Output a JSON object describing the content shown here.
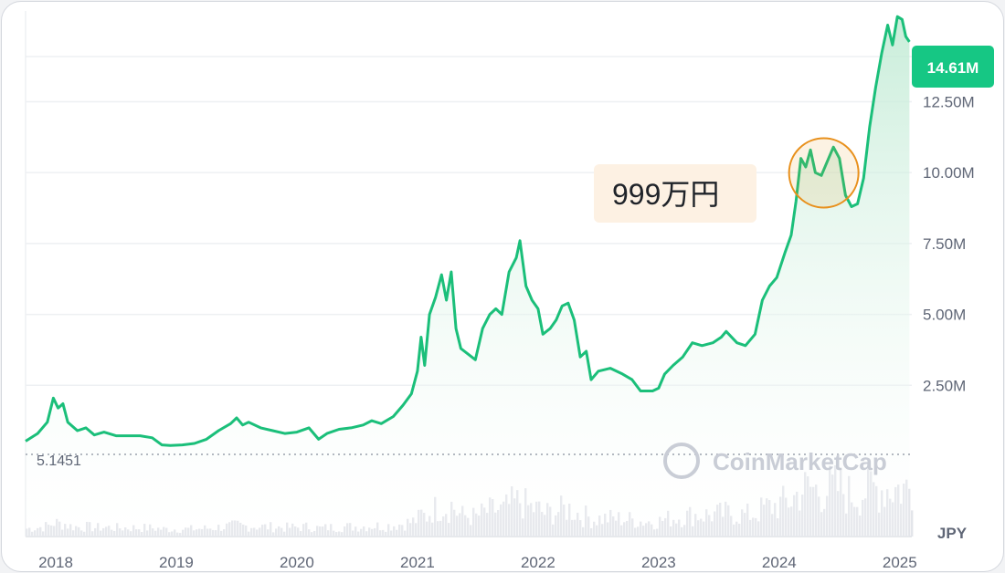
{
  "colors": {
    "line": "#1bbf7a",
    "fill_top": "#bfead3",
    "badge": "#16c784",
    "callout_bg": "#fdf1e3",
    "highlight": "#e8901c",
    "volume": "#e3e5ea",
    "grid": "#eef0f3"
  },
  "chart_data": {
    "type": "line",
    "currency": "JPY",
    "current_price_label": "14.61M",
    "base_value_label": "5.1451",
    "annotation": {
      "text": "999万円",
      "x": 2024.37,
      "y": 9990000
    },
    "watermark": "CoinMarketCap",
    "xlim": [
      2017.75,
      2025.1
    ],
    "ylim": [
      0,
      15700000
    ],
    "y_ticks": [
      {
        "value": 2500000,
        "label": "2.50M"
      },
      {
        "value": 5000000,
        "label": "5.00M"
      },
      {
        "value": 7500000,
        "label": "7.50M"
      },
      {
        "value": 10000000,
        "label": "10.00M"
      },
      {
        "value": 12500000,
        "label": "12.50M"
      }
    ],
    "x_ticks": [
      {
        "value": 2018.0,
        "label": "2018"
      },
      {
        "value": 2019.0,
        "label": "2019"
      },
      {
        "value": 2020.0,
        "label": "2020"
      },
      {
        "value": 2021.0,
        "label": "2021"
      },
      {
        "value": 2022.0,
        "label": "2022"
      },
      {
        "value": 2023.0,
        "label": "2023"
      },
      {
        "value": 2024.0,
        "label": "2024"
      },
      {
        "value": 2025.0,
        "label": "2025"
      }
    ],
    "series": [
      {
        "points": [
          [
            2017.75,
            530000
          ],
          [
            2017.85,
            800000
          ],
          [
            2017.93,
            1200000
          ],
          [
            2017.98,
            2050000
          ],
          [
            2018.02,
            1700000
          ],
          [
            2018.06,
            1850000
          ],
          [
            2018.1,
            1200000
          ],
          [
            2018.18,
            900000
          ],
          [
            2018.25,
            1000000
          ],
          [
            2018.32,
            750000
          ],
          [
            2018.4,
            850000
          ],
          [
            2018.5,
            720000
          ],
          [
            2018.6,
            720000
          ],
          [
            2018.7,
            720000
          ],
          [
            2018.8,
            650000
          ],
          [
            2018.88,
            400000
          ],
          [
            2018.95,
            380000
          ],
          [
            2019.05,
            400000
          ],
          [
            2019.15,
            450000
          ],
          [
            2019.25,
            600000
          ],
          [
            2019.35,
            900000
          ],
          [
            2019.45,
            1150000
          ],
          [
            2019.5,
            1350000
          ],
          [
            2019.55,
            1100000
          ],
          [
            2019.6,
            1200000
          ],
          [
            2019.7,
            1000000
          ],
          [
            2019.8,
            900000
          ],
          [
            2019.9,
            800000
          ],
          [
            2020.0,
            850000
          ],
          [
            2020.1,
            1000000
          ],
          [
            2020.18,
            600000
          ],
          [
            2020.25,
            800000
          ],
          [
            2020.35,
            950000
          ],
          [
            2020.45,
            1000000
          ],
          [
            2020.55,
            1100000
          ],
          [
            2020.62,
            1250000
          ],
          [
            2020.7,
            1150000
          ],
          [
            2020.8,
            1400000
          ],
          [
            2020.88,
            1800000
          ],
          [
            2020.95,
            2200000
          ],
          [
            2021.0,
            3000000
          ],
          [
            2021.03,
            4200000
          ],
          [
            2021.06,
            3200000
          ],
          [
            2021.1,
            5000000
          ],
          [
            2021.15,
            5600000
          ],
          [
            2021.2,
            6400000
          ],
          [
            2021.24,
            5500000
          ],
          [
            2021.28,
            6500000
          ],
          [
            2021.32,
            4500000
          ],
          [
            2021.36,
            3800000
          ],
          [
            2021.42,
            3600000
          ],
          [
            2021.48,
            3400000
          ],
          [
            2021.54,
            4500000
          ],
          [
            2021.6,
            5000000
          ],
          [
            2021.65,
            5200000
          ],
          [
            2021.7,
            5000000
          ],
          [
            2021.76,
            6500000
          ],
          [
            2021.82,
            7000000
          ],
          [
            2021.85,
            7600000
          ],
          [
            2021.9,
            6000000
          ],
          [
            2021.95,
            5500000
          ],
          [
            2022.0,
            5200000
          ],
          [
            2022.04,
            4300000
          ],
          [
            2022.1,
            4500000
          ],
          [
            2022.15,
            4800000
          ],
          [
            2022.2,
            5300000
          ],
          [
            2022.25,
            5400000
          ],
          [
            2022.3,
            4800000
          ],
          [
            2022.35,
            3500000
          ],
          [
            2022.4,
            3700000
          ],
          [
            2022.44,
            2700000
          ],
          [
            2022.5,
            3000000
          ],
          [
            2022.6,
            3100000
          ],
          [
            2022.7,
            2900000
          ],
          [
            2022.78,
            2700000
          ],
          [
            2022.85,
            2300000
          ],
          [
            2022.95,
            2300000
          ],
          [
            2023.0,
            2400000
          ],
          [
            2023.05,
            2900000
          ],
          [
            2023.12,
            3200000
          ],
          [
            2023.2,
            3500000
          ],
          [
            2023.28,
            4000000
          ],
          [
            2023.36,
            3900000
          ],
          [
            2023.45,
            4000000
          ],
          [
            2023.52,
            4200000
          ],
          [
            2023.56,
            4400000
          ],
          [
            2023.65,
            4000000
          ],
          [
            2023.72,
            3900000
          ],
          [
            2023.8,
            4300000
          ],
          [
            2023.86,
            5500000
          ],
          [
            2023.92,
            6000000
          ],
          [
            2023.98,
            6300000
          ],
          [
            2024.05,
            7200000
          ],
          [
            2024.1,
            7800000
          ],
          [
            2024.14,
            9000000
          ],
          [
            2024.18,
            10500000
          ],
          [
            2024.22,
            10200000
          ],
          [
            2024.26,
            10800000
          ],
          [
            2024.3,
            10000000
          ],
          [
            2024.35,
            9900000
          ],
          [
            2024.4,
            10400000
          ],
          [
            2024.45,
            10900000
          ],
          [
            2024.5,
            10500000
          ],
          [
            2024.55,
            9200000
          ],
          [
            2024.6,
            8800000
          ],
          [
            2024.65,
            8900000
          ],
          [
            2024.7,
            9800000
          ],
          [
            2024.75,
            11600000
          ],
          [
            2024.8,
            13000000
          ],
          [
            2024.85,
            14200000
          ],
          [
            2024.9,
            15200000
          ],
          [
            2024.94,
            14500000
          ],
          [
            2024.98,
            15500000
          ],
          [
            2025.02,
            15400000
          ],
          [
            2025.05,
            14800000
          ],
          [
            2025.08,
            14610000
          ]
        ]
      }
    ]
  }
}
